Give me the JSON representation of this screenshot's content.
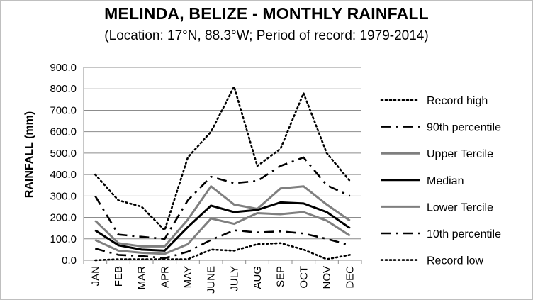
{
  "chart_data": {
    "type": "line",
    "title": "MELINDA, BELIZE - MONTHLY RAINFALL",
    "subtitle": "(Location: 17°N, 88.3°W; Period of record: 1979-2014)",
    "ylabel": "RAINFALL (mm)",
    "xlabel": "",
    "ylim": [
      0,
      900
    ],
    "ytick_values": [
      0,
      100,
      200,
      300,
      400,
      500,
      600,
      700,
      800,
      900
    ],
    "ytick_labels": [
      "0.0",
      "100.0",
      "200.0",
      "300.0",
      "400.0",
      "500.0",
      "600.0",
      "700.0",
      "800.0",
      "900.0"
    ],
    "grid": true,
    "legend_position": "right",
    "categories": [
      "JAN",
      "FEB",
      "MAR",
      "APR",
      "MAY",
      "JUNE",
      "JULY",
      "AUG",
      "SEP",
      "OCT",
      "NOV",
      "DEC"
    ],
    "series": [
      {
        "name": "Record high",
        "style": "dotted",
        "color": "#000000",
        "values": [
          400,
          280,
          250,
          140,
          480,
          600,
          810,
          440,
          520,
          780,
          500,
          370
        ]
      },
      {
        "name": "90th percentile",
        "style": "dashdot",
        "color": "#000000",
        "values": [
          300,
          120,
          110,
          100,
          280,
          390,
          360,
          370,
          440,
          480,
          350,
          300
        ]
      },
      {
        "name": "Upper Tercile",
        "style": "solid",
        "color": "#7f7f7f",
        "values": [
          185,
          80,
          65,
          65,
          190,
          345,
          260,
          240,
          335,
          345,
          260,
          185
        ]
      },
      {
        "name": "Median",
        "style": "solid",
        "color": "#000000",
        "values": [
          140,
          70,
          50,
          45,
          155,
          255,
          225,
          235,
          270,
          265,
          225,
          150
        ]
      },
      {
        "name": "Lower Tercile",
        "style": "solid",
        "color": "#7f7f7f",
        "values": [
          95,
          45,
          35,
          30,
          75,
          195,
          170,
          220,
          215,
          225,
          185,
          115
        ]
      },
      {
        "name": "10th percentile",
        "style": "dashdot",
        "color": "#000000",
        "values": [
          55,
          25,
          20,
          10,
          40,
          95,
          140,
          130,
          135,
          125,
          100,
          70
        ]
      },
      {
        "name": "Record low",
        "style": "dotted",
        "color": "#000000",
        "values": [
          0,
          5,
          5,
          5,
          5,
          50,
          45,
          75,
          80,
          50,
          5,
          25
        ]
      }
    ]
  }
}
